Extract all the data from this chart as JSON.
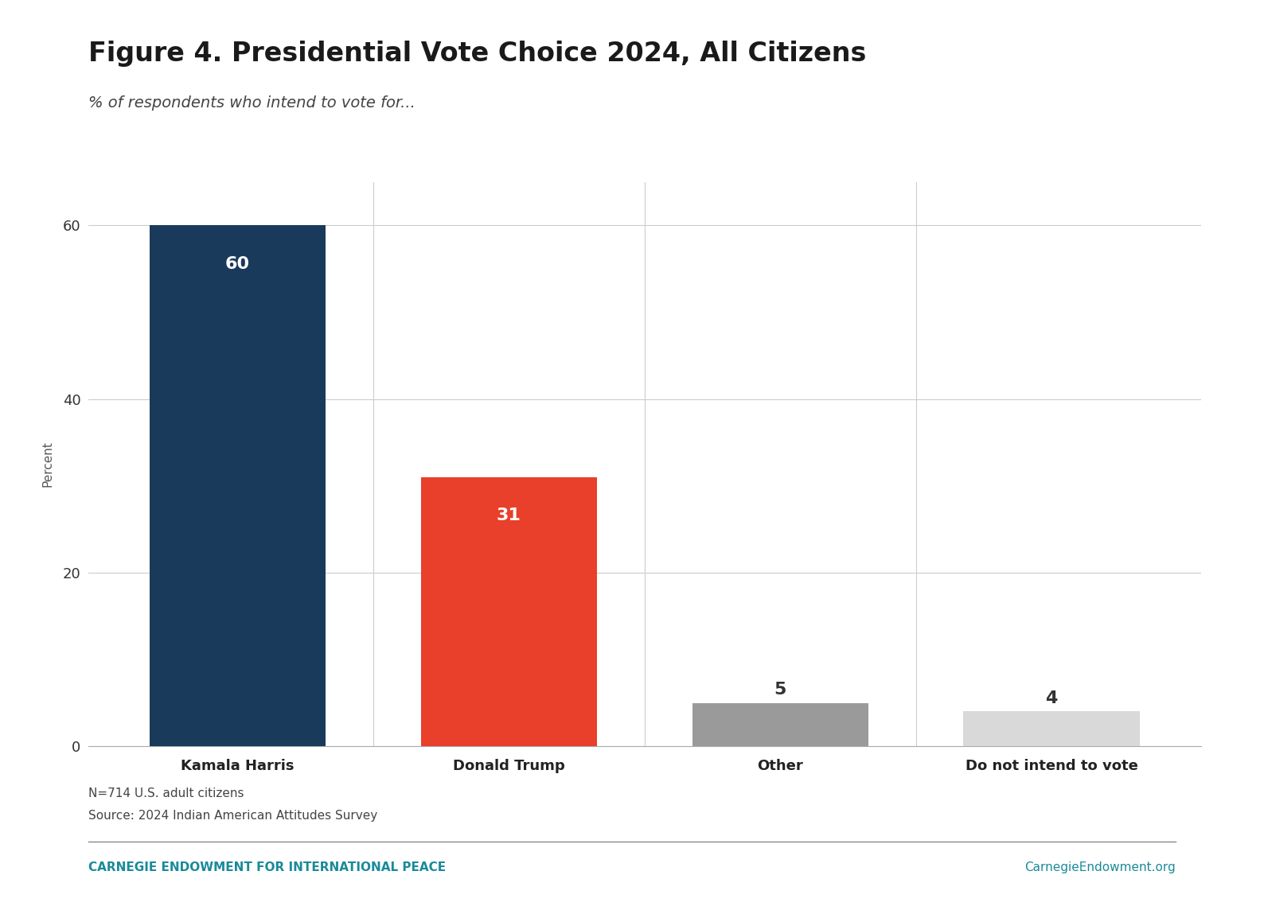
{
  "title": "Figure 4. Presidential Vote Choice 2024, All Citizens",
  "subtitle": "% of respondents who intend to vote for...",
  "categories": [
    "Kamala Harris",
    "Donald Trump",
    "Other",
    "Do not intend to vote"
  ],
  "values": [
    60,
    31,
    5,
    4
  ],
  "bar_colors": [
    "#1a3a5c",
    "#e8402a",
    "#9a9a9a",
    "#d9d9d9"
  ],
  "label_colors": [
    "white",
    "white",
    "#333333",
    "#333333"
  ],
  "ylabel": "Percent",
  "ylim": [
    0,
    65
  ],
  "yticks": [
    0,
    20,
    40,
    60
  ],
  "footnote_line1": "N=714 U.S. adult citizens",
  "footnote_line2": "Source: 2024 Indian American Attitudes Survey",
  "footer_left": "CARNEGIE ENDOWMENT FOR INTERNATIONAL PEACE",
  "footer_right": "CarnegieEndowment.org",
  "footer_color": "#1a8a9a",
  "background_color": "#ffffff",
  "title_fontsize": 24,
  "subtitle_fontsize": 14,
  "ylabel_fontsize": 11,
  "tick_fontsize": 13,
  "bar_label_fontsize": 16,
  "footnote_fontsize": 11,
  "footer_fontsize": 11,
  "grid_color": "#cccccc",
  "bar_width": 0.65
}
